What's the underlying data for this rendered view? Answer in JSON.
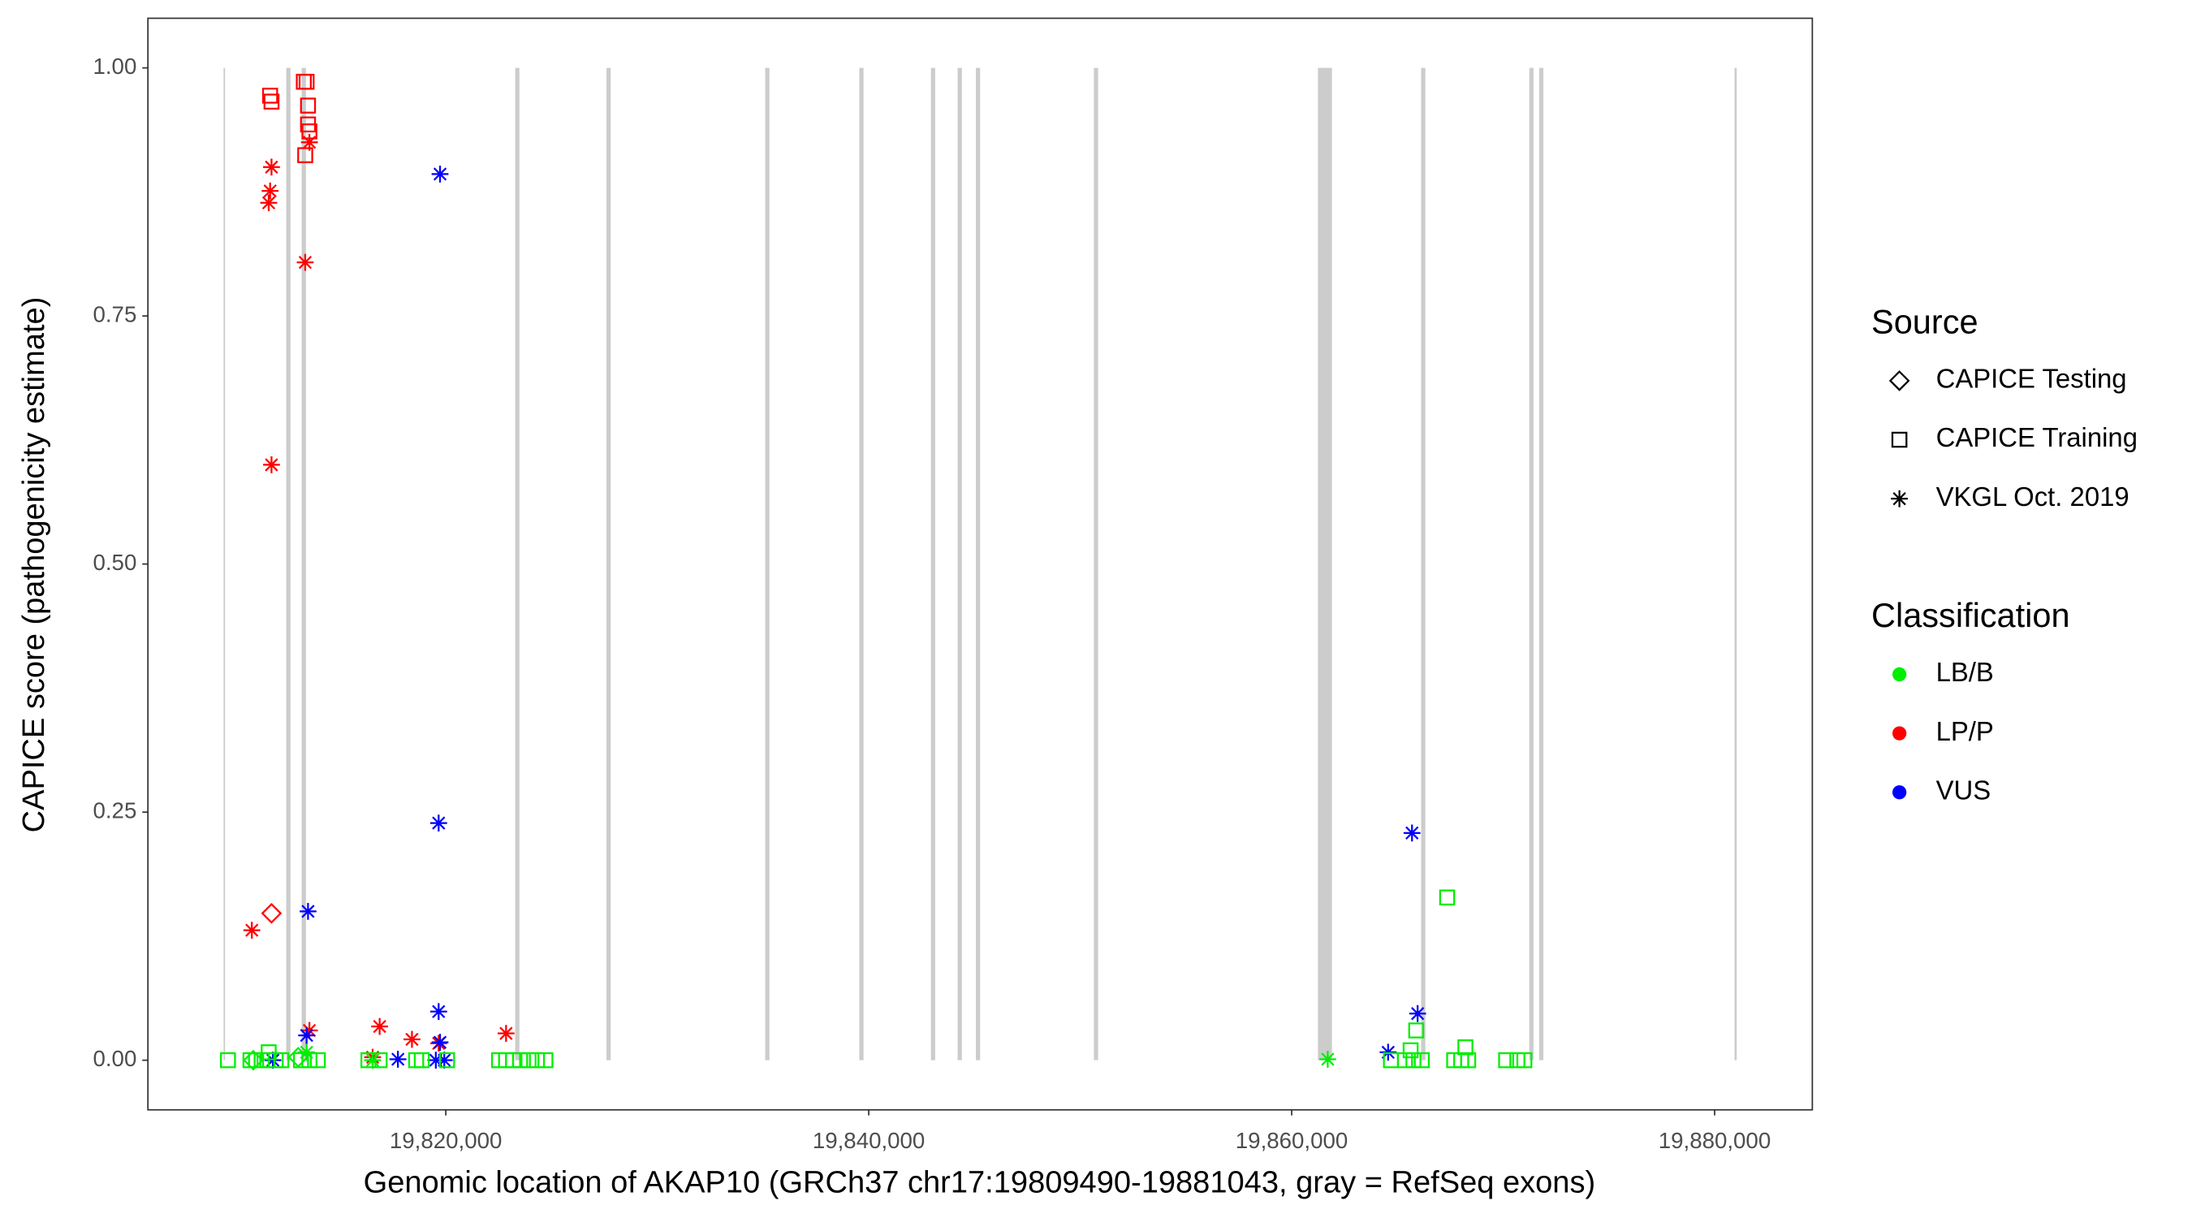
{
  "chart_data": {
    "type": "scatter",
    "x_label": "Genomic location of AKAP10 (GRCh37 chr17:19809490-19881043, gray = RefSeq exons)",
    "y_label": "CAPICE score (pathogenicity estimate)",
    "xlim": [
      19805912,
      19884621
    ],
    "ylim": [
      -0.05,
      1.05
    ],
    "xticks": [
      {
        "value": 19820000,
        "label": "19,820,000"
      },
      {
        "value": 19840000,
        "label": "19,840,000"
      },
      {
        "value": 19860000,
        "label": "19,860,000"
      },
      {
        "value": 19880000,
        "label": "19,880,000"
      }
    ],
    "yticks": [
      {
        "value": 0,
        "label": "0.00"
      },
      {
        "value": 0.25,
        "label": "0.25"
      },
      {
        "value": 0.5,
        "label": "0.50"
      },
      {
        "value": 0.75,
        "label": "0.75"
      },
      {
        "value": 1,
        "label": "1.00"
      }
    ],
    "exon_color": "#cccccc",
    "exons": [
      [
        19809490,
        19809560
      ],
      [
        19812454,
        19812654
      ],
      [
        19813185,
        19813385
      ],
      [
        19823280,
        19823480
      ],
      [
        19827598,
        19827798
      ],
      [
        19835103,
        19835303
      ],
      [
        19839553,
        19839753
      ],
      [
        19842941,
        19843141
      ],
      [
        19844203,
        19844403
      ],
      [
        19845066,
        19845266
      ],
      [
        19850646,
        19850846
      ],
      [
        19861240,
        19861904
      ],
      [
        19866123,
        19866323
      ],
      [
        19871236,
        19871436
      ],
      [
        19871701,
        19871901
      ],
      [
        19880943,
        19881043
      ]
    ],
    "legends": [
      {
        "title": "Source",
        "entries": [
          {
            "label": "CAPICE Testing",
            "shape": "diamond"
          },
          {
            "label": "CAPICE Training",
            "shape": "square"
          },
          {
            "label": "VKGL Oct. 2019",
            "shape": "star"
          }
        ]
      },
      {
        "title": "Classification",
        "entries": [
          {
            "label": "LB/B",
            "color": "#00ee00"
          },
          {
            "label": "LP/P",
            "color": "#ff0000"
          },
          {
            "label": "VUS",
            "color": "#0000ff"
          }
        ]
      }
    ],
    "series": [
      {
        "source": "CAPICE Training",
        "classification": "LP/P",
        "x": [
          19811691,
          19811757,
          19813285,
          19813417,
          19813484,
          19813484,
          19813550,
          19813351
        ],
        "y": [
          0.972,
          0.966,
          0.986,
          0.986,
          0.962,
          0.943,
          0.936,
          0.912
        ]
      },
      {
        "source": "CAPICE Testing",
        "classification": "LP/P",
        "x": [
          19811757
        ],
        "y": [
          0.148
        ]
      },
      {
        "source": "VKGL Oct. 2019",
        "classification": "LP/P",
        "x": [
          19811757,
          19811691,
          19811624,
          19813550,
          19813351,
          19811757,
          19810827,
          19813550,
          19816871,
          19818399,
          19819661,
          19822849,
          19816539
        ],
        "y": [
          0.9,
          0.876,
          0.864,
          0.925,
          0.804,
          0.6,
          0.131,
          0.03,
          0.034,
          0.021,
          0.017,
          0.027,
          0.003
        ]
      },
      {
        "source": "VKGL Oct. 2019",
        "classification": "VUS",
        "x": [
          19819727,
          19819661,
          19813484,
          19865690,
          19865956,
          19819661,
          19813417,
          19819727,
          19864561,
          19811823,
          19817735,
          19819528,
          19819927
        ],
        "y": [
          0.893,
          0.239,
          0.15,
          0.229,
          0.047,
          0.049,
          0.025,
          0.018,
          0.008,
          0,
          0.001,
          0,
          0
        ]
      },
      {
        "source": "VKGL Oct. 2019",
        "classification": "LB/B",
        "x": [
          19861705,
          19813417,
          19816539
        ],
        "y": [
          0.001,
          0.008,
          0
        ]
      },
      {
        "source": "CAPICE Training",
        "classification": "LB/B",
        "x": [
          19809698,
          19810761,
          19811026,
          19811292,
          19811558,
          19811956,
          19812222,
          19813152,
          19813550,
          19813949,
          19816340,
          19816871,
          19818598,
          19818864,
          19820059,
          19822517,
          19822849,
          19823181,
          19823513,
          19823912,
          19824310,
          19824709,
          19864694,
          19865358,
          19865756,
          19866155,
          19867683,
          19868015,
          19868347,
          19870140,
          19870672,
          19871004,
          19867351,
          19865889,
          19868214,
          19865624,
          19811624
        ],
        "y": [
          0,
          0,
          0,
          0,
          0,
          0,
          0,
          0,
          0,
          0,
          0,
          0,
          0,
          0,
          0,
          0,
          0,
          0,
          0,
          0,
          0,
          0,
          0,
          0,
          0,
          0,
          0,
          0,
          0,
          0,
          0,
          0,
          0.164,
          0.03,
          0.013,
          0.01,
          0.008
        ]
      },
      {
        "source": "CAPICE Testing",
        "classification": "LB/B",
        "x": [
          19810894,
          19813019
        ],
        "y": [
          0,
          0.003
        ]
      }
    ]
  }
}
